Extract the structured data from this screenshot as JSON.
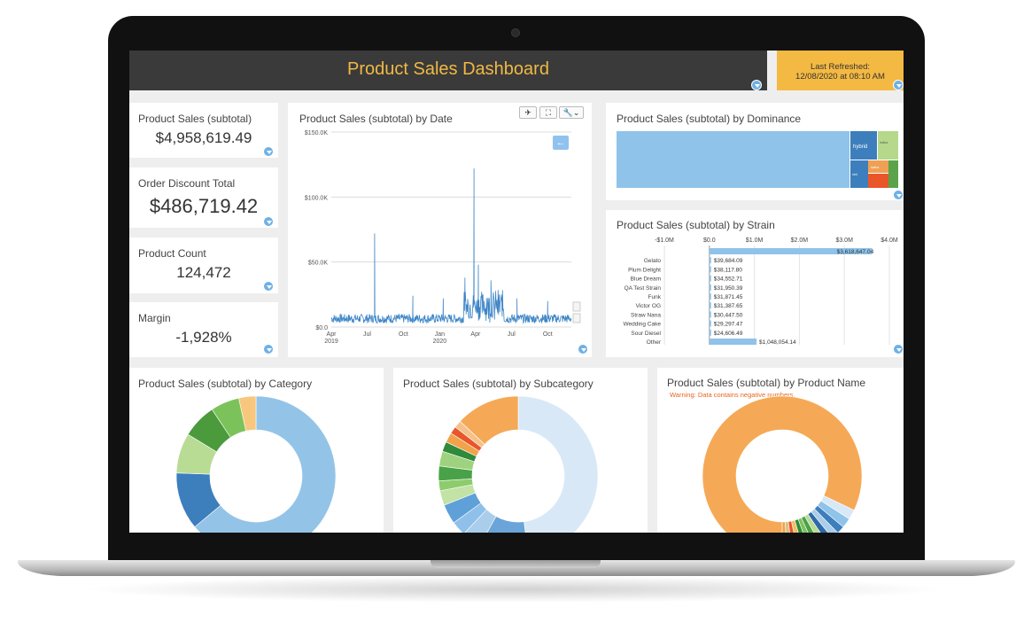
{
  "header": {
    "title": "Product Sales Dashboard",
    "refresh_label": "Last Refreshed:",
    "refresh_value": "12/08/2020 at 08:10 AM"
  },
  "kpis": [
    {
      "label": "Product Sales (subtotal)",
      "value": "$4,958,619.49"
    },
    {
      "label": "Order Discount Total",
      "value": "$486,719.42"
    },
    {
      "label": "Product Count",
      "value": "124,472"
    },
    {
      "label": "Margin",
      "value": "-1,928%"
    }
  ],
  "toolbar": {
    "pin_icon": "pin-icon",
    "fullscreen_icon": "fullscreen-icon",
    "settings_icon": "wrench-icon",
    "settings_caret": "⌄",
    "back_icon": "arrow-left-icon"
  },
  "chart_data": [
    {
      "type": "line",
      "title": "Product Sales (subtotal) by Date",
      "ylim": [
        0,
        150000
      ],
      "y_ticks": [
        "$0.0",
        "$50.0K",
        "$100.0K",
        "$150.0K"
      ],
      "x_ticks": [
        "Apr\n2019",
        "Jul",
        "Oct",
        "Jan\n2020",
        "Apr",
        "Jul",
        "Oct"
      ],
      "x_range": [
        "2019-04-01",
        "2020-11-30"
      ],
      "baseline": 3000,
      "spikes": [
        {
          "date": "2019-07-20",
          "value": 72000
        },
        {
          "date": "2019-10-25",
          "value": 24000
        },
        {
          "date": "2020-01-10",
          "value": 22000
        },
        {
          "date": "2020-03-05",
          "value": 38000
        },
        {
          "date": "2020-03-28",
          "value": 122000
        },
        {
          "date": "2020-04-08",
          "value": 48000
        },
        {
          "date": "2020-05-10",
          "value": 36000
        },
        {
          "date": "2020-07-15",
          "value": 22000
        },
        {
          "date": "2020-10-01",
          "value": 20000
        }
      ]
    },
    {
      "type": "treemap",
      "title": "Product Sales (subtotal) by Dominance",
      "labels": [
        "hybrid",
        "indica",
        "sativa",
        "cbd"
      ],
      "colors": [
        "#8fc3ea",
        "#3d7ebc",
        "#b5d88a",
        "#f0a054",
        "#e8562a",
        "#5aa34a"
      ]
    },
    {
      "type": "bar",
      "title": "Product Sales (subtotal) by Strain",
      "x_ticks": [
        "-$1.0M",
        "$0.0",
        "$1.0M",
        "$2.0M",
        "$3.0M",
        "$4.0M"
      ],
      "xlim": [
        -1000000,
        4000000
      ],
      "categories": [
        "",
        "Gelato",
        "Plum Delight",
        "Blue Dream",
        "QA Test Strain",
        "Funk",
        "Victor OG",
        "Straw Nana",
        "Wedding Cake",
        "Sour Diesel",
        "Other"
      ],
      "values": [
        3618647.04,
        39684.09,
        38117.8,
        34552.71,
        31950.39,
        31871.45,
        31387.65,
        30447.5,
        29297.47,
        24606.49,
        1048054.14
      ],
      "labels": [
        "$3,618,647.04",
        "$39,684.09",
        "$38,117.80",
        "$34,552.71",
        "$31,950.39",
        "$31,871.45",
        "$31,387.65",
        "$30,447.50",
        "$29,297.47",
        "$24,606.49",
        "$1,048,054.14"
      ]
    },
    {
      "type": "pie",
      "title": "Product Sales (subtotal) by Category",
      "values": [
        55,
        10,
        7,
        6,
        5,
        3
      ],
      "colors": [
        "#93c4e8",
        "#3d7ebc",
        "#b9dc95",
        "#4b9a3c",
        "#7cc25b",
        "#f7c77e"
      ]
    },
    {
      "type": "pie",
      "title": "Product Sales (subtotal) by Subcategory",
      "values": [
        48,
        10,
        4,
        3,
        4,
        3,
        2,
        3,
        3,
        2,
        2,
        1.5,
        1.5,
        13
      ],
      "colors": [
        "#d8e8f6",
        "#6aa4d9",
        "#a9cdea",
        "#8ec0ea",
        "#5fa0d8",
        "#c2e2a6",
        "#8ccc6d",
        "#4aa248",
        "#9fd27e",
        "#2f8a3a",
        "#f2a24a",
        "#e8562a",
        "#f5c18a",
        "#f5a956"
      ]
    },
    {
      "type": "pie",
      "title": "Product Sales (subtotal) by Product Name",
      "warning": "Warning: Data contains negative numbers.",
      "values": [
        82,
        2,
        2,
        1.6,
        1.5,
        1.4,
        1.3,
        1.3,
        1.2,
        1.2,
        1.2,
        1.1,
        1.1,
        1.0
      ],
      "colors": [
        "#f5a956",
        "#d8e8f6",
        "#8fc3ea",
        "#3d7ebc",
        "#a9cdea",
        "#2e6aa8",
        "#b9dc95",
        "#4aa248",
        "#7cc25b",
        "#2f8a3a",
        "#f0c060",
        "#e8562a",
        "#d9c080",
        "#f2a24a"
      ]
    }
  ]
}
